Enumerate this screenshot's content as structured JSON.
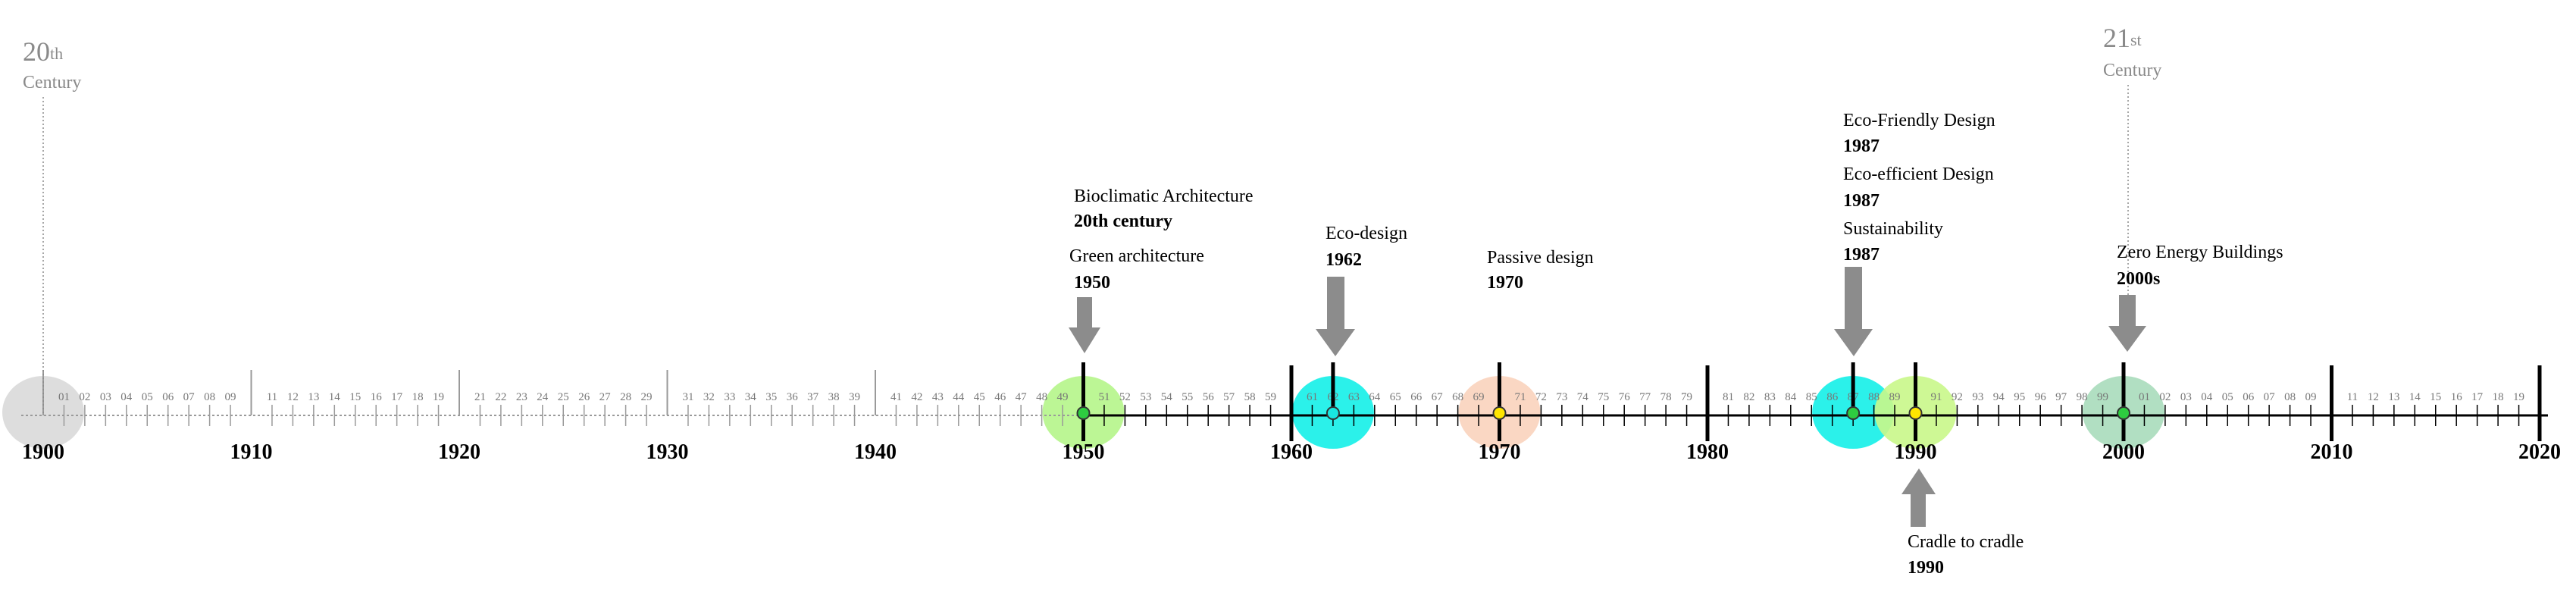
{
  "century_labels": [
    {
      "id": "c20",
      "number": "20",
      "suffix": "th",
      "word": "Century"
    },
    {
      "id": "c21",
      "number": "21",
      "suffix": "st",
      "word": "Century"
    }
  ],
  "timeline": {
    "start_year": 1900,
    "end_year": 2020,
    "decade_labels": [
      "1900",
      "1910",
      "1920",
      "1930",
      "1940",
      "1950",
      "1960",
      "1970",
      "1980",
      "1990",
      "2000",
      "2010",
      "2020"
    ]
  },
  "events": [
    {
      "id": "bioclimatic",
      "name": "Bioclimatic Architecture",
      "date": "20th century"
    },
    {
      "id": "green",
      "name": "Green architecture",
      "date": "1950"
    },
    {
      "id": "ecodesign",
      "name": "Eco-design",
      "date": "1962"
    },
    {
      "id": "passive",
      "name": "Passive design",
      "date": "1970"
    },
    {
      "id": "ecofriendly",
      "name": "Eco-Friendly Design",
      "date": "1987"
    },
    {
      "id": "ecoefficient",
      "name": "Eco-efficient Design",
      "date": "1987"
    },
    {
      "id": "sustainability",
      "name": "Sustainability",
      "date": "1987"
    },
    {
      "id": "zeroenergy",
      "name": "Zero Energy Buildings",
      "date": "2000s"
    },
    {
      "id": "cradle",
      "name": "Cradle to cradle",
      "date": "1990"
    }
  ],
  "highlights": [
    {
      "id": "h1900",
      "year": 1900,
      "color": "#d9d9d9",
      "marker": "none"
    },
    {
      "id": "h1950",
      "year": 1950,
      "color": "#b5f58a",
      "marker": "green"
    },
    {
      "id": "h1962",
      "year": 1962,
      "color": "#14f0e8",
      "marker": "cyan"
    },
    {
      "id": "h1970",
      "year": 1970,
      "color": "#f9d3bd",
      "marker": "yellow"
    },
    {
      "id": "h1987",
      "year": 1987,
      "color": "#14f0e8",
      "marker": "green"
    },
    {
      "id": "h1990",
      "year": 1990,
      "color": "#c9f78a",
      "marker": "yellow"
    },
    {
      "id": "h2000",
      "year": 2000,
      "color": "#a8dcbb",
      "marker": "green"
    }
  ],
  "colors": {
    "axis_active": "#000000",
    "axis_faded": "#9a9a9a",
    "arrow": "#8c8c8c",
    "marker_green": "#2ecc40",
    "marker_cyan": "#19e6e0",
    "marker_yellow": "#ffe600"
  }
}
